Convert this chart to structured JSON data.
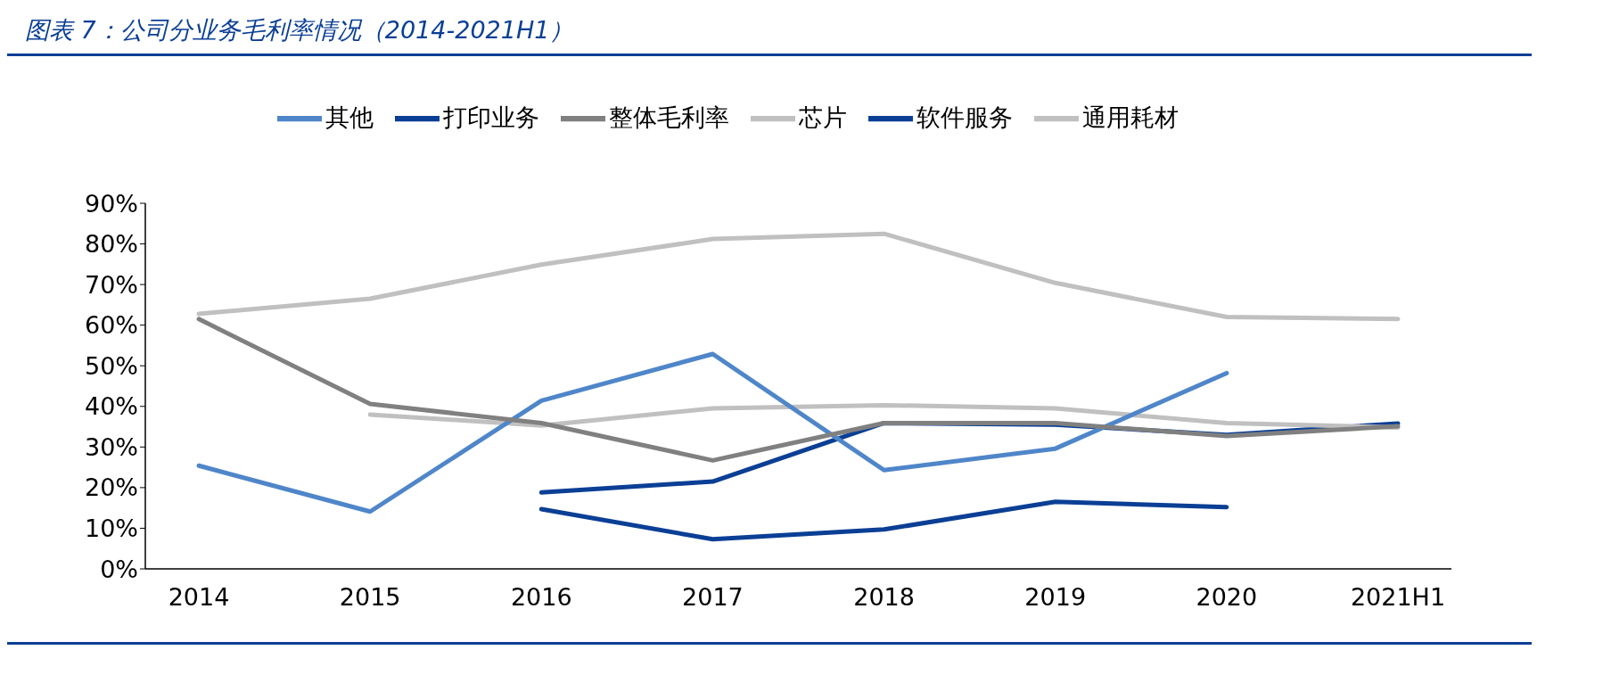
{
  "chart_data": {
    "type": "line",
    "title": "图表 7：公司分业务毛利率情况（2014-2021H1）",
    "categories": [
      "2014",
      "2015",
      "2016",
      "2017",
      "2018",
      "2019",
      "2020",
      "2021H1"
    ],
    "series": [
      {
        "name": "打印业务",
        "color": "#0b3f95",
        "values": [
          null,
          null,
          18.8,
          21.5,
          35.9,
          35.5,
          33.0,
          35.8
        ]
      },
      {
        "name": "通用耗材",
        "color": "#c0c0c0",
        "values": [
          null,
          38.0,
          35.3,
          39.5,
          40.3,
          39.5,
          35.9,
          34.8
        ]
      },
      {
        "name": "软件服务",
        "color": "#0b3f95",
        "values": [
          null,
          null,
          14.7,
          7.3,
          9.7,
          16.5,
          15.2,
          null
        ]
      },
      {
        "name": "芯片",
        "color": "#c0c0c0",
        "values": [
          62.8,
          66.5,
          74.9,
          81.2,
          82.5,
          70.4,
          62.0,
          61.5
        ]
      },
      {
        "name": "其他",
        "color": "#4f86c9",
        "values": [
          25.4,
          14.1,
          41.4,
          52.9,
          24.3,
          29.6,
          48.2,
          null
        ]
      },
      {
        "name": "整体毛利率",
        "color": "#808080",
        "values": [
          61.5,
          40.6,
          35.9,
          26.7,
          35.9,
          35.9,
          32.7,
          35.1
        ]
      }
    ],
    "ylim": [
      0,
      90
    ],
    "yticks": [
      {
        "value": 0,
        "label": "0%"
      },
      {
        "value": 10,
        "label": "10%"
      },
      {
        "value": 20,
        "label": "20%"
      },
      {
        "value": 30,
        "label": "30%"
      },
      {
        "value": 40,
        "label": "40%"
      },
      {
        "value": 50,
        "label": "50%"
      },
      {
        "value": 60,
        "label": "60%"
      },
      {
        "value": 70,
        "label": "70%"
      },
      {
        "value": 80,
        "label": "80%"
      },
      {
        "value": 90,
        "label": "90%"
      }
    ],
    "grid": false,
    "legend": "top",
    "marker": "none",
    "line_style": "solid"
  }
}
